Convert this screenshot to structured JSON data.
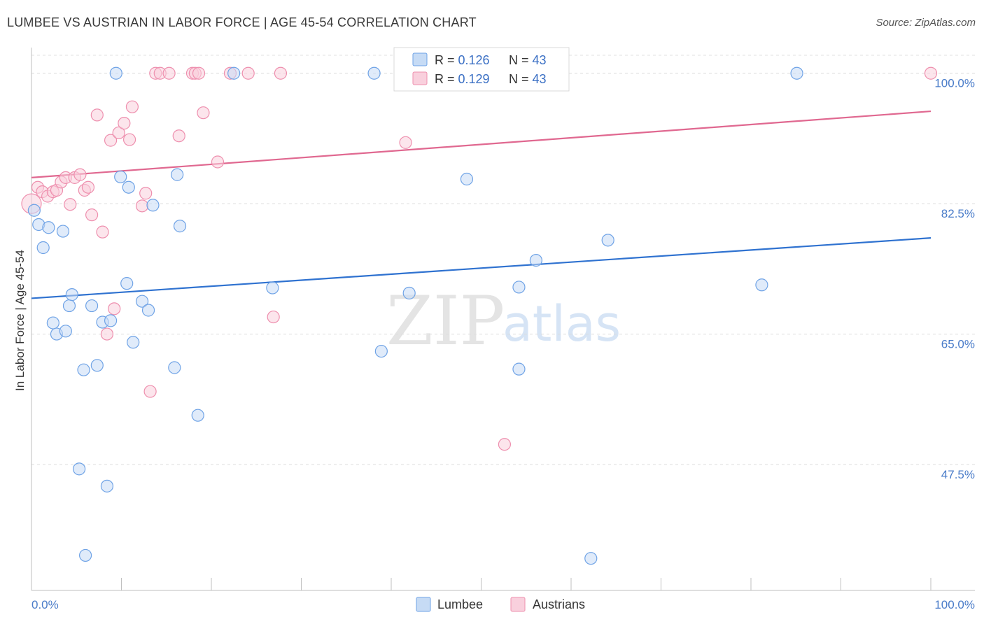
{
  "title": "LUMBEE VS AUSTRIAN IN LABOR FORCE | AGE 45-54 CORRELATION CHART",
  "source": "Source: ZipAtlas.com",
  "watermark": {
    "zip": "ZIP",
    "atlas": "atlas"
  },
  "legend": {
    "rows": [
      {
        "r_label": "R = ",
        "r_value": "0.126",
        "n_label": "N = ",
        "n_value": "43"
      },
      {
        "r_label": "R = ",
        "r_value": "0.129",
        "n_label": "N = ",
        "n_value": "43"
      }
    ]
  },
  "bottom_legend": [
    "Lumbee",
    "Austrians"
  ],
  "colors": {
    "lumbee": "#6fa3e6",
    "lumbee_fill": "#c6dbf5",
    "lumbee_line": "#2f72d0",
    "austrians": "#ee8fae",
    "austrians_fill": "#f9d0dd",
    "austrians_line": "#e06890",
    "tick_text": "#4a7cc9"
  },
  "chart_data": {
    "type": "scatter",
    "title": "LUMBEE VS AUSTRIAN IN LABOR FORCE | AGE 45-54 CORRELATION CHART",
    "xlabel": "",
    "ylabel": "In Labor Force | Age 45-54",
    "xlim": [
      0,
      100
    ],
    "ylim": [
      30.6,
      104.2
    ],
    "x_tick_labels": [
      "0.0%",
      "100.0%"
    ],
    "y_ticks": [
      47.5,
      65.0,
      82.5,
      100.0
    ],
    "y_tick_labels": [
      "47.5%",
      "65.0%",
      "82.5%",
      "100.0%"
    ],
    "grid": true,
    "legend_position": "top-center",
    "series": [
      {
        "name": "Lumbee",
        "points": [
          [
            0.3,
            81.6
          ],
          [
            0.8,
            79.7
          ],
          [
            1.3,
            76.6
          ],
          [
            1.9,
            79.3
          ],
          [
            2.4,
            66.5
          ],
          [
            2.8,
            65.0
          ],
          [
            3.5,
            78.8
          ],
          [
            3.8,
            65.4
          ],
          [
            4.2,
            68.8
          ],
          [
            4.5,
            70.3
          ],
          [
            5.3,
            46.9
          ],
          [
            5.8,
            60.2
          ],
          [
            6.0,
            35.3
          ],
          [
            6.7,
            68.8
          ],
          [
            7.3,
            60.8
          ],
          [
            7.9,
            66.6
          ],
          [
            8.4,
            44.6
          ],
          [
            8.8,
            66.8
          ],
          [
            9.4,
            100.0
          ],
          [
            9.9,
            86.1
          ],
          [
            10.6,
            71.8
          ],
          [
            10.8,
            84.7
          ],
          [
            11.3,
            63.9
          ],
          [
            12.3,
            69.4
          ],
          [
            13.0,
            68.2
          ],
          [
            13.5,
            82.3
          ],
          [
            15.9,
            60.5
          ],
          [
            16.2,
            86.4
          ],
          [
            16.5,
            79.5
          ],
          [
            18.5,
            54.1
          ],
          [
            22.5,
            100.0
          ],
          [
            26.8,
            71.2
          ],
          [
            38.1,
            100.0
          ],
          [
            38.9,
            62.7
          ],
          [
            42.0,
            70.5
          ],
          [
            48.4,
            85.8
          ],
          [
            54.2,
            71.3
          ],
          [
            54.2,
            60.3
          ],
          [
            56.1,
            74.9
          ],
          [
            62.2,
            34.9
          ],
          [
            64.1,
            77.6
          ],
          [
            81.2,
            71.6
          ],
          [
            85.1,
            100.0
          ]
        ],
        "trend": [
          [
            0,
            69.8
          ],
          [
            100,
            77.9
          ]
        ]
      },
      {
        "name": "Austrians",
        "points": [
          [
            0.0,
            82.5
          ],
          [
            0.7,
            84.7
          ],
          [
            1.2,
            84.1
          ],
          [
            1.8,
            83.5
          ],
          [
            2.4,
            84.1
          ],
          [
            2.8,
            84.3
          ],
          [
            3.3,
            85.4
          ],
          [
            3.8,
            86.0
          ],
          [
            4.3,
            82.4
          ],
          [
            4.8,
            86.0
          ],
          [
            5.4,
            86.4
          ],
          [
            5.9,
            84.3
          ],
          [
            6.3,
            84.7
          ],
          [
            6.7,
            81.0
          ],
          [
            7.3,
            94.4
          ],
          [
            7.9,
            78.7
          ],
          [
            8.4,
            65.0
          ],
          [
            8.8,
            91.0
          ],
          [
            9.2,
            68.4
          ],
          [
            9.7,
            92.0
          ],
          [
            10.3,
            93.3
          ],
          [
            10.9,
            91.1
          ],
          [
            11.2,
            95.5
          ],
          [
            12.3,
            82.2
          ],
          [
            12.7,
            83.9
          ],
          [
            13.2,
            57.3
          ],
          [
            13.8,
            100.0
          ],
          [
            14.3,
            100.0
          ],
          [
            15.3,
            100.0
          ],
          [
            16.4,
            91.6
          ],
          [
            17.9,
            100.0
          ],
          [
            18.2,
            100.0
          ],
          [
            18.6,
            100.0
          ],
          [
            19.1,
            94.7
          ],
          [
            20.7,
            88.1
          ],
          [
            22.1,
            100.0
          ],
          [
            24.1,
            100.0
          ],
          [
            26.9,
            67.3
          ],
          [
            27.7,
            100.0
          ],
          [
            41.0,
            100.0
          ],
          [
            41.6,
            90.7
          ],
          [
            52.6,
            50.2
          ],
          [
            100.0,
            100.0
          ]
        ],
        "trend": [
          [
            0,
            86.0
          ],
          [
            100,
            94.9
          ]
        ]
      }
    ]
  }
}
